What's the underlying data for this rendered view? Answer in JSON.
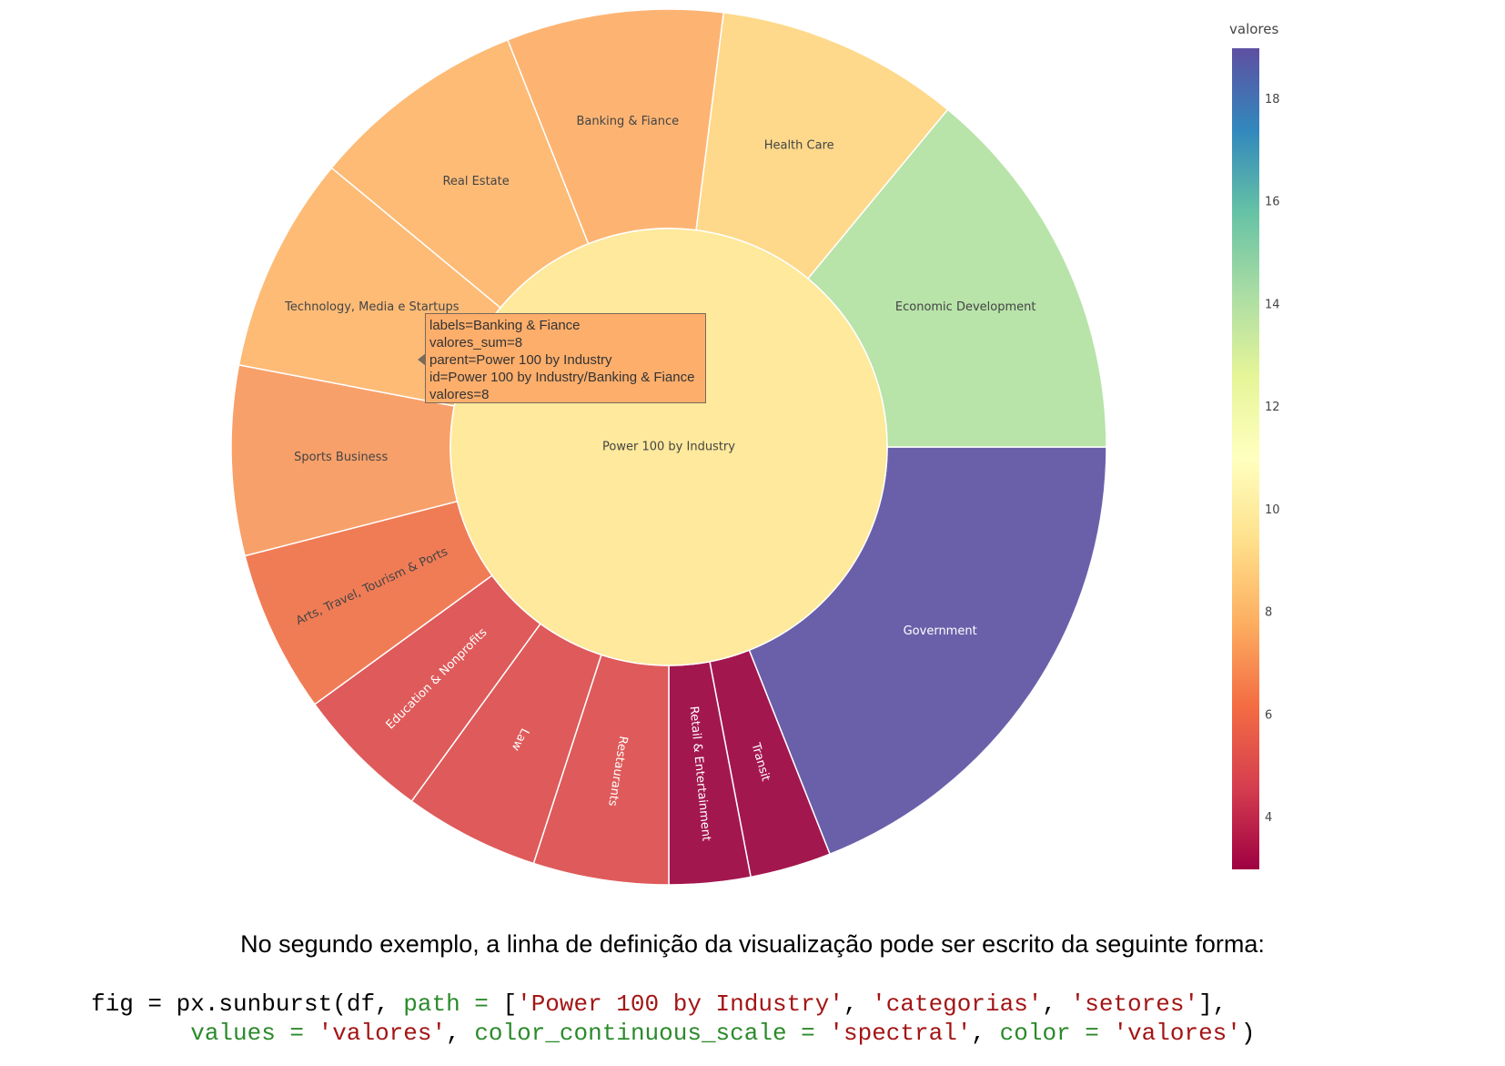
{
  "chart_data": {
    "type": "sunburst",
    "root": {
      "label": "Power 100 by Industry",
      "color": "#fee99c"
    },
    "segments": [
      {
        "label": "Government",
        "value": 19,
        "color": "#6a60aa",
        "text_color": "#ffffff"
      },
      {
        "label": "Transit",
        "value": 3,
        "color": "#a3174f",
        "text_color": "#ffffff"
      },
      {
        "label": "Retail & Entertainment",
        "value": 3,
        "color": "#a3174f",
        "text_color": "#ffffff"
      },
      {
        "label": "Restaurants",
        "value": 5,
        "color": "#df5a5a",
        "text_color": "#ffffff"
      },
      {
        "label": "Law",
        "value": 5,
        "color": "#df5a5a",
        "text_color": "#ffffff"
      },
      {
        "label": "Education & Nonprofits",
        "value": 5,
        "color": "#df5a5a",
        "text_color": "#ffffff"
      },
      {
        "label": "Arts, Travel, Tourism & Ports",
        "value": 6,
        "color": "#f07c56",
        "text_color": "#444444"
      },
      {
        "label": "Sports Business",
        "value": 7,
        "color": "#f8a06a",
        "text_color": "#444444"
      },
      {
        "label": "Technology, Media e Startups",
        "value": 8,
        "color": "#fdbb76",
        "text_color": "#444444"
      },
      {
        "label": "Real Estate",
        "value": 8,
        "color": "#fdbb76",
        "text_color": "#444444"
      },
      {
        "label": "Banking & Fiance",
        "value": 8,
        "color": "#fdb473",
        "text_color": "#444444"
      },
      {
        "label": "Health Care",
        "value": 9,
        "color": "#fed98b",
        "text_color": "#444444"
      },
      {
        "label": "Economic Development",
        "value": 14,
        "color": "#b8e3a9",
        "text_color": "#444444"
      }
    ],
    "colorbar": {
      "title": "valores",
      "range": [
        3,
        19
      ],
      "ticks": [
        "4",
        "6",
        "8",
        "10",
        "12",
        "14",
        "16",
        "18"
      ],
      "stops": [
        "#9e0142",
        "#d53e4f",
        "#f46d43",
        "#fdae61",
        "#fee08b",
        "#ffffbf",
        "#e6f598",
        "#abdda4",
        "#66c2a5",
        "#3288bd",
        "#5e4fa2"
      ]
    }
  },
  "tooltip": {
    "lines": [
      "labels=Banking & Fiance",
      "valores_sum=8",
      "parent=Power 100 by Industry",
      "id=Power 100 by Industry/Banking & Fiance",
      "valores=8"
    ]
  },
  "caption": "No segundo exemplo, a linha de definição da visualização pode ser escrito da seguinte forma:",
  "code": {
    "l1_a": "fig = px.sunburst(df, ",
    "l1_kw": "path = ",
    "l1_b": "[",
    "l1_s1": "'Power 100 by Industry'",
    "l1_c1": ", ",
    "l1_s2": "'categorias'",
    "l1_c2": ", ",
    "l1_s3": "'setores'",
    "l1_end": "],",
    "l2_indent": "       ",
    "l2_kw1": "values = ",
    "l2_s1": "'valores'",
    "l2_c1": ", ",
    "l2_kw2": "color_continuous_scale = ",
    "l2_s2": "'spectral'",
    "l2_c2": ", ",
    "l2_kw3": "color = ",
    "l2_s3": "'valores'",
    "l2_end": ")"
  }
}
